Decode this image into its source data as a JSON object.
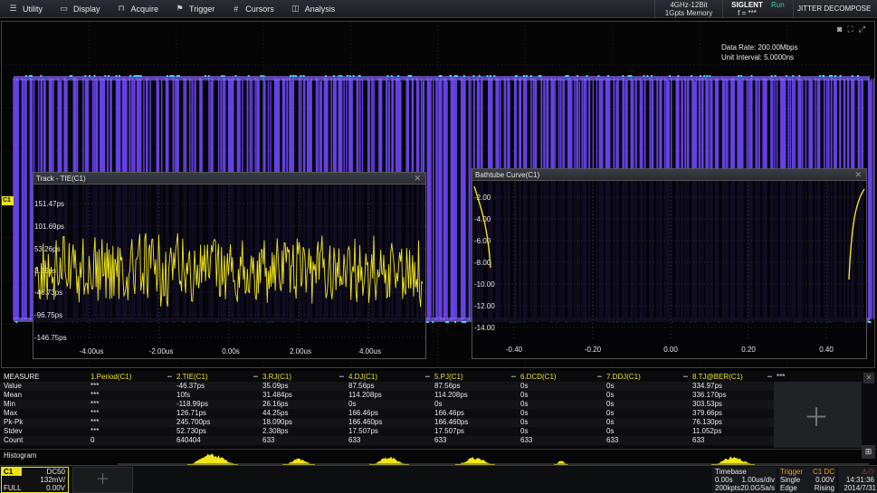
{
  "menu": [
    {
      "icon": "utility-icon",
      "label": "Utility"
    },
    {
      "icon": "display-icon",
      "label": "Display"
    },
    {
      "icon": "acquire-icon",
      "label": "Acquire"
    },
    {
      "icon": "trigger-icon",
      "label": "Trigger"
    },
    {
      "icon": "cursors-icon",
      "label": "Cursors"
    },
    {
      "icon": "analysis-icon",
      "label": "Analysis"
    }
  ],
  "status_top": {
    "spec_line1": "4GHz-12Bit",
    "spec_line2": "1Gpts Memory",
    "brand": "SIGLENT",
    "freq": "f = ***",
    "run_state": "Run",
    "mode": "JITTER DECOMPOSE"
  },
  "display": {
    "data_rate": "Data Rate: 200.00Mbps",
    "unit_interval": "Unit Interval: 5.0000ns",
    "channel_marker": "C1",
    "waveform_color": "#6a45f0",
    "trace_color": "#f0e61a"
  },
  "track_window": {
    "title": "Track - TIE(C1)",
    "y_ticks": [
      "151.47ps",
      "101.69ps",
      "53.26ps",
      "3.25ps",
      "-46.73ps",
      "-96.75ps",
      "-146.75ps"
    ],
    "x_ticks": [
      "-4.00us",
      "-2.00us",
      "0.00s",
      "2.00us",
      "4.00us"
    ]
  },
  "bathtub_window": {
    "title": "Bathtube Curve(C1)",
    "y_ticks": [
      "-2.00",
      "-4.00",
      "-6.00",
      "-8.00",
      "-10.00",
      "-12.00",
      "-14.00"
    ],
    "x_ticks": [
      "-0.40",
      "-0.20",
      "0.00",
      "0.20",
      "0.40"
    ]
  },
  "measure": {
    "header_label": "MEASURE",
    "columns": [
      "1.Period(C1)",
      "2.TIE(C1)",
      "3.RJ(C1)",
      "4.DJ(C1)",
      "5.PJ(C1)",
      "6.DCD(C1)",
      "7.DDJ(C1)",
      "8.TJ@BER(C1)"
    ],
    "more": "***",
    "rows": [
      {
        "label": "Value",
        "values": [
          "***",
          "-46.37ps",
          "35.09ps",
          "87.56ps",
          "87.56ps",
          "0s",
          "0s",
          "334.97ps"
        ]
      },
      {
        "label": "Mean",
        "values": [
          "***",
          "10fs",
          "31.484ps",
          "114.208ps",
          "114.208ps",
          "0s",
          "0s",
          "336.170ps"
        ]
      },
      {
        "label": "Min",
        "values": [
          "***",
          "-118.99ps",
          "26.16ps",
          "0s",
          "0s",
          "0s",
          "0s",
          "303.53ps"
        ]
      },
      {
        "label": "Max",
        "values": [
          "***",
          "126.71ps",
          "44.25ps",
          "166.46ps",
          "166.46ps",
          "0s",
          "0s",
          "379.66ps"
        ]
      },
      {
        "label": "Pk-Pk",
        "values": [
          "***",
          "245.700ps",
          "18.090ps",
          "166.460ps",
          "166.460ps",
          "0s",
          "0s",
          "76.130ps"
        ]
      },
      {
        "label": "Stdev",
        "values": [
          "***",
          "52.730ps",
          "2.308ps",
          "17.507ps",
          "17.507ps",
          "0s",
          "0s",
          "11.052ps"
        ]
      },
      {
        "label": "Count",
        "values": [
          "0",
          "640404",
          "633",
          "633",
          "633",
          "633",
          "633",
          "633"
        ]
      }
    ]
  },
  "histogram": {
    "label": "Histogram"
  },
  "channel_box": {
    "tag": "C1",
    "coupling": "DC50",
    "scale": "132mV/",
    "bandwidth": "FULL",
    "offset": "0.00V"
  },
  "timebase": {
    "title": "Timebase",
    "delay": "0.00s",
    "scale": "1.00us/div",
    "points": "200kpts",
    "sample_rate": "20.0GSa/s"
  },
  "trigger": {
    "title": "Trigger",
    "source": "C1 DC",
    "mode": "Single",
    "level": "0.00V",
    "type": "Edge",
    "slope": "Rising"
  },
  "clock": {
    "time": "14:31:36",
    "date": "2014/7/31"
  }
}
